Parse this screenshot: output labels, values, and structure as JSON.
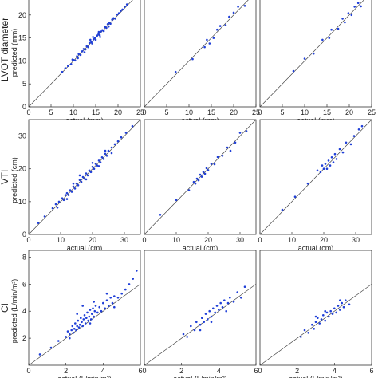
{
  "chart_data": [
    {
      "type": "scatter",
      "row": 0,
      "col": 0,
      "row_label": "LVOT diameter",
      "xlabel": "actual (mm)",
      "ylabel": "predicted (mm)",
      "xlim": [
        0,
        25
      ],
      "ylim": [
        0,
        25
      ],
      "xticks": [
        "0",
        "5",
        "10",
        "15",
        "20",
        "25"
      ],
      "yticks": [
        "0",
        "5",
        "10",
        "15",
        "20"
      ],
      "reference_line": "y = x",
      "point_color": "#1f3fd8",
      "points": [
        [
          7.5,
          7.6
        ],
        [
          8.2,
          8.4
        ],
        [
          8.8,
          8.9
        ],
        [
          9.5,
          9.3
        ],
        [
          10.0,
          10.2
        ],
        [
          10.4,
          10.1
        ],
        [
          10.8,
          11.0
        ],
        [
          11.2,
          11.5
        ],
        [
          11.6,
          11.3
        ],
        [
          12.0,
          12.1
        ],
        [
          12.3,
          12.6
        ],
        [
          12.7,
          12.5
        ],
        [
          13.0,
          13.2
        ],
        [
          13.3,
          13.0
        ],
        [
          13.6,
          13.9
        ],
        [
          14.0,
          14.1
        ],
        [
          14.2,
          13.8
        ],
        [
          14.5,
          14.7
        ],
        [
          14.8,
          15.0
        ],
        [
          15.0,
          14.6
        ],
        [
          15.3,
          15.5
        ],
        [
          15.6,
          15.8
        ],
        [
          15.9,
          15.6
        ],
        [
          16.2,
          16.4
        ],
        [
          16.5,
          16.7
        ],
        [
          16.8,
          16.5
        ],
        [
          17.1,
          17.4
        ],
        [
          17.4,
          17.2
        ],
        [
          17.7,
          18.0
        ],
        [
          18.0,
          18.3
        ],
        [
          18.3,
          18.1
        ],
        [
          18.7,
          19.0
        ],
        [
          19.0,
          19.3
        ],
        [
          19.4,
          19.2
        ],
        [
          19.8,
          20.1
        ],
        [
          20.2,
          20.4
        ],
        [
          20.6,
          20.9
        ],
        [
          21.0,
          21.2
        ],
        [
          21.5,
          21.8
        ],
        [
          22.0,
          22.3
        ],
        [
          12.5,
          11.9
        ],
        [
          14.4,
          15.2
        ],
        [
          16.0,
          15.2
        ],
        [
          17.9,
          17.5
        ],
        [
          11.0,
          10.6
        ],
        [
          9.8,
          10.3
        ],
        [
          13.8,
          14.6
        ],
        [
          15.7,
          16.3
        ]
      ]
    },
    {
      "type": "scatter",
      "row": 0,
      "col": 1,
      "xlabel": "actual (mm)",
      "ylabel": "",
      "xlim": [
        0,
        25
      ],
      "ylim": [
        0,
        25
      ],
      "xticks": [
        "0",
        "5",
        "10",
        "15",
        "20",
        "25"
      ],
      "yticks": [],
      "reference_line": "y = x",
      "point_color": "#1f3fd8",
      "points": [
        [
          7.0,
          7.6
        ],
        [
          10.8,
          10.4
        ],
        [
          13.5,
          13.0
        ],
        [
          14.0,
          14.6
        ],
        [
          14.6,
          13.8
        ],
        [
          15.5,
          15.0
        ],
        [
          16.3,
          16.8
        ],
        [
          17.0,
          17.6
        ],
        [
          18.2,
          17.8
        ],
        [
          19.0,
          19.6
        ],
        [
          20.0,
          20.5
        ],
        [
          21.0,
          21.8
        ],
        [
          22.5,
          22.0
        ],
        [
          23.0,
          24.0
        ]
      ]
    },
    {
      "type": "scatter",
      "row": 0,
      "col": 2,
      "xlabel": "actual (mm)",
      "ylabel": "",
      "xlim": [
        0,
        25
      ],
      "ylim": [
        0,
        25
      ],
      "xticks": [
        "0",
        "5",
        "10",
        "15",
        "20",
        "25"
      ],
      "yticks": [],
      "reference_line": "y = x",
      "point_color": "#1f3fd8",
      "points": [
        [
          7.5,
          7.8
        ],
        [
          10.0,
          10.5
        ],
        [
          12.0,
          11.6
        ],
        [
          14.0,
          14.6
        ],
        [
          15.5,
          15.0
        ],
        [
          16.0,
          16.8
        ],
        [
          17.5,
          17.0
        ],
        [
          18.5,
          19.2
        ],
        [
          19.0,
          18.4
        ],
        [
          19.8,
          20.4
        ],
        [
          20.5,
          20.0
        ],
        [
          21.2,
          21.8
        ],
        [
          22.0,
          22.6
        ],
        [
          22.6,
          21.9
        ]
      ]
    },
    {
      "type": "scatter",
      "row": 1,
      "col": 0,
      "row_label": "VTI",
      "xlabel": "actual (cm)",
      "ylabel": "predicted (cm)",
      "xlim": [
        0,
        35
      ],
      "ylim": [
        0,
        35
      ],
      "xticks": [
        "0",
        "10",
        "20",
        "30"
      ],
      "yticks": [
        "0",
        "10",
        "20",
        "30"
      ],
      "reference_line": "y = x",
      "point_color": "#1f3fd8",
      "points": [
        [
          3.0,
          3.5
        ],
        [
          5.0,
          5.5
        ],
        [
          7.5,
          8.0
        ],
        [
          8.5,
          9.2
        ],
        [
          9.5,
          10.0
        ],
        [
          10.5,
          11.0
        ],
        [
          11.0,
          10.5
        ],
        [
          11.5,
          12.0
        ],
        [
          12.0,
          12.6
        ],
        [
          12.5,
          12.0
        ],
        [
          13.0,
          13.5
        ],
        [
          13.5,
          13.0
        ],
        [
          14.0,
          14.6
        ],
        [
          14.5,
          14.0
        ],
        [
          15.0,
          15.5
        ],
        [
          15.5,
          15.0
        ],
        [
          16.0,
          16.6
        ],
        [
          16.5,
          16.0
        ],
        [
          17.0,
          17.5
        ],
        [
          17.5,
          17.0
        ],
        [
          18.0,
          18.6
        ],
        [
          18.5,
          18.0
        ],
        [
          19.0,
          19.5
        ],
        [
          19.5,
          19.0
        ],
        [
          20.0,
          20.6
        ],
        [
          20.5,
          20.0
        ],
        [
          21.0,
          21.5
        ],
        [
          21.5,
          21.0
        ],
        [
          22.0,
          22.5
        ],
        [
          22.5,
          22.0
        ],
        [
          23.0,
          23.5
        ],
        [
          23.5,
          23.0
        ],
        [
          24.0,
          24.6
        ],
        [
          24.5,
          24.0
        ],
        [
          25.0,
          25.5
        ],
        [
          26.0,
          26.5
        ],
        [
          27.0,
          27.5
        ],
        [
          28.0,
          28.4
        ],
        [
          29.0,
          29.6
        ],
        [
          30.5,
          31.0
        ],
        [
          32.5,
          33.0
        ],
        [
          9.0,
          8.2
        ],
        [
          14.0,
          15.5
        ],
        [
          18.0,
          16.8
        ],
        [
          20.0,
          21.8
        ],
        [
          22.0,
          20.8
        ],
        [
          24.0,
          25.5
        ],
        [
          26.0,
          24.8
        ],
        [
          16.0,
          18.0
        ],
        [
          12.0,
          10.8
        ]
      ]
    },
    {
      "type": "scatter",
      "row": 1,
      "col": 1,
      "xlabel": "actual (cm)",
      "ylabel": "",
      "xlim": [
        0,
        35
      ],
      "ylim": [
        0,
        35
      ],
      "xticks": [
        "0",
        "10",
        "20",
        "30"
      ],
      "yticks": [],
      "reference_line": "y = x",
      "point_color": "#1f3fd8",
      "points": [
        [
          5.0,
          6.0
        ],
        [
          10.0,
          10.5
        ],
        [
          14.0,
          13.5
        ],
        [
          15.5,
          16.0
        ],
        [
          16.0,
          15.5
        ],
        [
          16.5,
          17.0
        ],
        [
          17.0,
          16.5
        ],
        [
          17.5,
          18.2
        ],
        [
          18.0,
          17.6
        ],
        [
          18.5,
          19.0
        ],
        [
          19.0,
          18.5
        ],
        [
          19.5,
          20.2
        ],
        [
          20.0,
          19.6
        ],
        [
          21.0,
          21.5
        ],
        [
          22.0,
          21.4
        ],
        [
          23.0,
          23.6
        ],
        [
          24.5,
          24.0
        ],
        [
          26.0,
          26.5
        ],
        [
          27.0,
          25.5
        ],
        [
          28.5,
          28.0
        ],
        [
          30.0,
          31.0
        ],
        [
          32.0,
          31.5
        ]
      ]
    },
    {
      "type": "scatter",
      "row": 1,
      "col": 2,
      "xlabel": "actual (cm)",
      "ylabel": "",
      "xlim": [
        0,
        35
      ],
      "ylim": [
        0,
        35
      ],
      "xticks": [
        "0",
        "10",
        "20",
        "30"
      ],
      "yticks": [],
      "reference_line": "y = x",
      "point_color": "#1f3fd8",
      "points": [
        [
          7.0,
          7.5
        ],
        [
          11.0,
          11.5
        ],
        [
          15.0,
          15.5
        ],
        [
          18.0,
          19.5
        ],
        [
          19.0,
          19.0
        ],
        [
          19.5,
          21.0
        ],
        [
          20.0,
          20.0
        ],
        [
          20.5,
          21.5
        ],
        [
          21.0,
          20.0
        ],
        [
          21.5,
          22.5
        ],
        [
          22.0,
          21.0
        ],
        [
          22.5,
          23.5
        ],
        [
          23.0,
          22.0
        ],
        [
          23.5,
          24.5
        ],
        [
          24.0,
          23.0
        ],
        [
          25.0,
          26.0
        ],
        [
          26.0,
          25.0
        ],
        [
          27.0,
          28.0
        ],
        [
          28.5,
          27.5
        ],
        [
          29.5,
          30.0
        ],
        [
          31.0,
          32.0
        ],
        [
          32.0,
          33.0
        ]
      ]
    },
    {
      "type": "scatter",
      "row": 2,
      "col": 0,
      "row_label": "CI",
      "xlabel": "actual (L/min/m²)",
      "ylabel": "predicted (L/min/m²)",
      "xlim": [
        0,
        6
      ],
      "ylim": [
        0,
        8.5
      ],
      "xticks": [
        "0",
        "2",
        "4",
        "6"
      ],
      "yticks": [
        "2",
        "4",
        "6",
        "8"
      ],
      "reference_line": "y = x",
      "point_color": "#1f3fd8",
      "points": [
        [
          0.6,
          0.8
        ],
        [
          1.2,
          1.3
        ],
        [
          1.6,
          1.8
        ],
        [
          2.0,
          2.1
        ],
        [
          2.1,
          2.5
        ],
        [
          2.2,
          2.3
        ],
        [
          2.3,
          2.6
        ],
        [
          2.35,
          2.9
        ],
        [
          2.4,
          2.4
        ],
        [
          2.45,
          2.7
        ],
        [
          2.5,
          3.1
        ],
        [
          2.55,
          2.6
        ],
        [
          2.6,
          2.9
        ],
        [
          2.65,
          3.3
        ],
        [
          2.7,
          2.8
        ],
        [
          2.75,
          3.0
        ],
        [
          2.8,
          3.5
        ],
        [
          2.85,
          3.2
        ],
        [
          2.9,
          2.9
        ],
        [
          2.95,
          3.4
        ],
        [
          3.0,
          3.7
        ],
        [
          3.05,
          3.1
        ],
        [
          3.1,
          3.5
        ],
        [
          3.15,
          3.9
        ],
        [
          3.2,
          3.3
        ],
        [
          3.25,
          3.6
        ],
        [
          3.3,
          4.1
        ],
        [
          3.35,
          3.4
        ],
        [
          3.4,
          3.8
        ],
        [
          3.45,
          4.2
        ],
        [
          3.5,
          3.6
        ],
        [
          3.55,
          4.0
        ],
        [
          3.6,
          4.4
        ],
        [
          3.7,
          3.9
        ],
        [
          3.8,
          4.3
        ],
        [
          3.9,
          4.0
        ],
        [
          4.0,
          4.6
        ],
        [
          4.1,
          4.2
        ],
        [
          4.2,
          4.8
        ],
        [
          4.3,
          4.4
        ],
        [
          4.4,
          5.0
        ],
        [
          4.5,
          4.6
        ],
        [
          4.6,
          5.1
        ],
        [
          4.8,
          5.0
        ],
        [
          5.0,
          5.3
        ],
        [
          5.2,
          5.6
        ],
        [
          5.4,
          6.0
        ],
        [
          5.6,
          6.4
        ],
        [
          5.8,
          7.0
        ],
        [
          2.6,
          3.8
        ],
        [
          2.9,
          4.4
        ],
        [
          3.3,
          3.1
        ],
        [
          3.5,
          4.7
        ],
        [
          4.2,
          5.3
        ],
        [
          4.6,
          4.3
        ],
        [
          2.2,
          2.0
        ]
      ]
    },
    {
      "type": "scatter",
      "row": 2,
      "col": 1,
      "xlabel": "actual (L/min/m²)",
      "ylabel": "",
      "xlim": [
        0,
        6
      ],
      "ylim": [
        0,
        8.5
      ],
      "xticks": [
        "0",
        "2",
        "4",
        "6"
      ],
      "yticks": [],
      "reference_line": "y = x",
      "point_color": "#1f3fd8",
      "points": [
        [
          2.1,
          2.3
        ],
        [
          2.3,
          2.1
        ],
        [
          2.5,
          2.9
        ],
        [
          2.7,
          2.6
        ],
        [
          2.8,
          3.2
        ],
        [
          3.0,
          3.0
        ],
        [
          3.1,
          3.5
        ],
        [
          3.2,
          3.2
        ],
        [
          3.3,
          3.8
        ],
        [
          3.4,
          3.4
        ],
        [
          3.5,
          4.0
        ],
        [
          3.6,
          3.6
        ],
        [
          3.7,
          4.2
        ],
        [
          3.8,
          3.9
        ],
        [
          3.9,
          4.4
        ],
        [
          4.0,
          4.1
        ],
        [
          4.1,
          4.6
        ],
        [
          4.2,
          4.3
        ],
        [
          4.3,
          4.8
        ],
        [
          4.5,
          4.6
        ],
        [
          4.6,
          5.0
        ],
        [
          4.8,
          4.7
        ],
        [
          5.0,
          5.4
        ],
        [
          5.2,
          5.0
        ],
        [
          5.4,
          5.8
        ],
        [
          3.0,
          2.6
        ],
        [
          3.6,
          3.2
        ],
        [
          4.4,
          4.0
        ]
      ]
    },
    {
      "type": "scatter",
      "row": 2,
      "col": 2,
      "xlabel": "actual (L/min/m²)",
      "ylabel": "",
      "xlim": [
        0,
        6
      ],
      "ylim": [
        0,
        8.5
      ],
      "xticks": [
        "0",
        "2",
        "4",
        "6"
      ],
      "yticks": [],
      "reference_line": "y = x",
      "point_color": "#1f3fd8",
      "points": [
        [
          2.2,
          2.1
        ],
        [
          2.4,
          2.6
        ],
        [
          2.6,
          2.4
        ],
        [
          2.8,
          3.0
        ],
        [
          2.9,
          2.7
        ],
        [
          3.0,
          3.2
        ],
        [
          3.1,
          3.5
        ],
        [
          3.2,
          3.1
        ],
        [
          3.3,
          3.4
        ],
        [
          3.4,
          3.7
        ],
        [
          3.5,
          3.3
        ],
        [
          3.6,
          3.9
        ],
        [
          3.7,
          3.6
        ],
        [
          3.8,
          4.0
        ],
        [
          3.9,
          3.8
        ],
        [
          4.0,
          4.2
        ],
        [
          4.1,
          3.9
        ],
        [
          4.2,
          4.4
        ],
        [
          4.3,
          4.1
        ],
        [
          4.4,
          4.6
        ],
        [
          4.5,
          4.3
        ],
        [
          4.6,
          4.8
        ],
        [
          4.8,
          4.5
        ],
        [
          4.3,
          4.8
        ],
        [
          3.5,
          4.0
        ],
        [
          3.0,
          3.6
        ]
      ]
    }
  ]
}
